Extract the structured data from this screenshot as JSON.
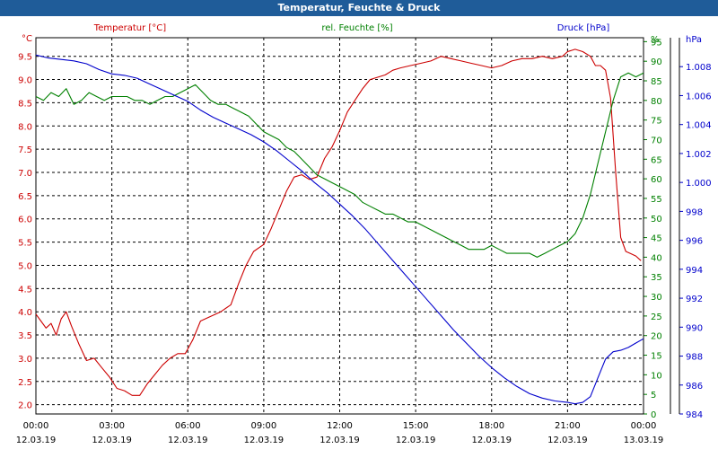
{
  "chart_data": {
    "type": "line",
    "title": "Temperatur, Feuchte & Druck",
    "colors": {
      "temperature": "#cc0000",
      "humidity": "#008000",
      "pressure": "#0000cc",
      "title_bar": "#1f5c99"
    },
    "x_ticks": [
      {
        "time": "00:00",
        "date": "12.03.19"
      },
      {
        "time": "03:00",
        "date": "12.03.19"
      },
      {
        "time": "06:00",
        "date": "12.03.19"
      },
      {
        "time": "09:00",
        "date": "12.03.19"
      },
      {
        "time": "12:00",
        "date": "12.03.19"
      },
      {
        "time": "15:00",
        "date": "12.03.19"
      },
      {
        "time": "18:00",
        "date": "12.03.19"
      },
      {
        "time": "21:00",
        "date": "12.03.19"
      },
      {
        "time": "00:00",
        "date": "13.03.19"
      }
    ],
    "x_range_hours": [
      0,
      24
    ],
    "axes": {
      "temperature": {
        "label": "Temperatur [°C]",
        "unit": "°C",
        "range": [
          1.8,
          9.9
        ],
        "ticks": [
          "2.0",
          "2.5",
          "3.0",
          "3.5",
          "4.0",
          "4.5",
          "5.0",
          "5.5",
          "6.0",
          "6.5",
          "7.0",
          "7.5",
          "8.0",
          "8.5",
          "9.0",
          "9.5"
        ]
      },
      "humidity": {
        "label": "rel. Feuchte [%]",
        "unit": "%",
        "range": [
          0,
          96
        ],
        "ticks": [
          "0",
          "5",
          "10",
          "15",
          "20",
          "25",
          "30",
          "35",
          "40",
          "45",
          "50",
          "55",
          "60",
          "65",
          "70",
          "75",
          "80",
          "85",
          "90",
          "95"
        ]
      },
      "pressure": {
        "label": "Druck [hPa]",
        "unit": "hPa",
        "range": [
          984,
          1010
        ],
        "ticks": [
          "984",
          "986",
          "988",
          "990",
          "992",
          "994",
          "996",
          "998",
          "1.000",
          "1.002",
          "1.004",
          "1.006",
          "1.008"
        ]
      }
    },
    "series": [
      {
        "name": "Temperatur",
        "axis": "temperature",
        "x": [
          0,
          0.2,
          0.4,
          0.6,
          0.8,
          1.0,
          1.2,
          1.4,
          1.7,
          2.0,
          2.3,
          2.6,
          2.9,
          3.2,
          3.5,
          3.8,
          4.1,
          4.4,
          4.7,
          5.0,
          5.3,
          5.6,
          5.9,
          6.2,
          6.5,
          6.9,
          7.3,
          7.7,
          8.0,
          8.3,
          8.6,
          9.0,
          9.3,
          9.6,
          9.9,
          10.2,
          10.5,
          10.8,
          11.1,
          11.4,
          11.7,
          12.0,
          12.3,
          12.6,
          12.9,
          13.2,
          13.5,
          13.8,
          14.1,
          14.4,
          14.8,
          15.2,
          15.6,
          16.0,
          16.4,
          16.8,
          17.2,
          17.6,
          18.0,
          18.4,
          18.8,
          19.2,
          19.6,
          20.0,
          20.4,
          20.8,
          21.0,
          21.3,
          21.6,
          21.9,
          22.1,
          22.3,
          22.5,
          22.7,
          22.9,
          23.1,
          23.3,
          23.5,
          23.7,
          23.9
        ],
        "values": [
          3.95,
          3.8,
          3.65,
          3.75,
          3.5,
          3.85,
          4.0,
          3.7,
          3.3,
          2.95,
          3.0,
          2.8,
          2.6,
          2.35,
          2.3,
          2.2,
          2.2,
          2.45,
          2.65,
          2.85,
          3.0,
          3.1,
          3.1,
          3.4,
          3.8,
          3.9,
          4.0,
          4.15,
          4.6,
          5.0,
          5.3,
          5.45,
          5.8,
          6.2,
          6.6,
          6.9,
          6.95,
          6.85,
          6.9,
          7.3,
          7.55,
          7.9,
          8.3,
          8.55,
          8.8,
          9.0,
          9.05,
          9.1,
          9.2,
          9.25,
          9.3,
          9.35,
          9.4,
          9.5,
          9.45,
          9.4,
          9.35,
          9.3,
          9.25,
          9.3,
          9.4,
          9.45,
          9.45,
          9.5,
          9.45,
          9.5,
          9.6,
          9.65,
          9.6,
          9.5,
          9.3,
          9.3,
          9.2,
          8.6,
          7.0,
          5.6,
          5.3,
          5.25,
          5.2,
          5.1
        ]
      },
      {
        "name": "rel. Feuchte",
        "axis": "humidity",
        "x": [
          0,
          0.3,
          0.6,
          0.9,
          1.2,
          1.5,
          1.8,
          2.1,
          2.4,
          2.7,
          3.0,
          3.3,
          3.6,
          3.9,
          4.2,
          4.5,
          4.8,
          5.1,
          5.4,
          5.7,
          6.0,
          6.3,
          6.6,
          6.9,
          7.2,
          7.5,
          7.8,
          8.1,
          8.4,
          8.7,
          9.0,
          9.3,
          9.6,
          9.9,
          10.2,
          10.5,
          10.8,
          11.1,
          11.4,
          11.7,
          12.0,
          12.3,
          12.6,
          12.9,
          13.2,
          13.5,
          13.8,
          14.1,
          14.4,
          14.7,
          15.0,
          15.3,
          15.6,
          15.9,
          16.2,
          16.5,
          16.8,
          17.1,
          17.4,
          17.7,
          18.0,
          18.3,
          18.6,
          18.9,
          19.2,
          19.5,
          19.8,
          20.1,
          20.4,
          20.7,
          21.0,
          21.3,
          21.6,
          21.9,
          22.2,
          22.5,
          22.8,
          23.1,
          23.4,
          23.7,
          24.0
        ],
        "values": [
          81,
          80,
          82,
          81,
          83,
          79,
          80,
          82,
          81,
          80,
          81,
          81,
          81,
          80,
          80,
          79,
          80,
          81,
          81,
          82,
          83,
          84,
          82,
          80,
          79,
          79,
          78,
          77,
          76,
          74,
          72,
          71,
          70,
          68,
          67,
          65,
          63,
          61,
          60,
          59,
          58,
          57,
          56,
          54,
          53,
          52,
          51,
          51,
          50,
          49,
          49,
          48,
          47,
          46,
          45,
          44,
          43,
          42,
          42,
          42,
          43,
          42,
          41,
          41,
          41,
          41,
          40,
          41,
          42,
          43,
          44,
          46,
          50,
          56,
          64,
          72,
          80,
          86,
          87,
          86,
          87
        ]
      },
      {
        "name": "Druck",
        "axis": "pressure",
        "x": [
          0,
          0.5,
          1.0,
          1.5,
          2.0,
          2.5,
          3.0,
          3.5,
          4.0,
          4.5,
          5.0,
          5.5,
          6.0,
          6.5,
          7.0,
          7.5,
          8.0,
          8.5,
          9.0,
          9.5,
          10.0,
          10.5,
          11.0,
          11.5,
          12.0,
          12.5,
          13.0,
          13.5,
          14.0,
          14.5,
          15.0,
          15.5,
          16.0,
          16.5,
          17.0,
          17.5,
          18.0,
          18.5,
          19.0,
          19.5,
          20.0,
          20.5,
          21.0,
          21.3,
          21.6,
          21.9,
          22.2,
          22.5,
          22.8,
          23.1,
          23.4,
          23.7,
          24.0
        ],
        "values": [
          1008.8,
          1008.6,
          1008.5,
          1008.4,
          1008.2,
          1007.8,
          1007.5,
          1007.4,
          1007.2,
          1006.8,
          1006.4,
          1006.0,
          1005.6,
          1005.0,
          1004.5,
          1004.1,
          1003.7,
          1003.3,
          1002.8,
          1002.2,
          1001.5,
          1000.8,
          1000.0,
          999.3,
          998.5,
          997.7,
          996.8,
          995.8,
          994.8,
          993.8,
          992.8,
          991.8,
          990.8,
          989.8,
          988.9,
          988.0,
          987.2,
          986.5,
          985.9,
          985.4,
          985.1,
          984.9,
          984.8,
          984.7,
          984.8,
          985.2,
          986.5,
          987.8,
          988.3,
          988.4,
          988.6,
          988.9,
          989.2
        ]
      }
    ]
  }
}
